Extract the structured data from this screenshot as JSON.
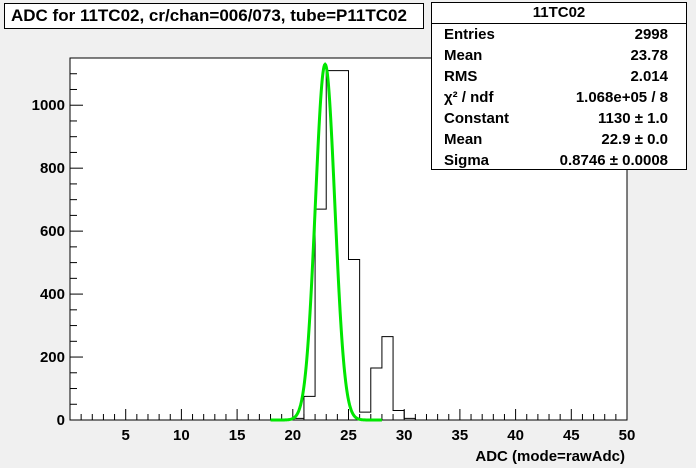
{
  "title": "ADC for 11TC02,  cr/chan=006/073,  tube=P11TC02",
  "stats": {
    "title": "11TC02",
    "rows": [
      {
        "key": "Entries",
        "value": "2998"
      },
      {
        "key": "Mean",
        "value": "23.78"
      },
      {
        "key": "RMS",
        "value": "2.014"
      },
      {
        "key": "χ² / ndf",
        "value": "1.068e+05 / 8"
      },
      {
        "key": "Constant",
        "value": "1130 ± 1.0"
      },
      {
        "key": "Mean",
        "value": "22.9 ± 0.0"
      },
      {
        "key": "Sigma",
        "value": "0.8746 ± 0.0008"
      }
    ]
  },
  "chart_data": {
    "type": "bar",
    "title": "ADC for 11TC02,  cr/chan=006/073,  tube=P11TC02",
    "xlabel": "ADC (mode=rawAdc)",
    "ylabel": "",
    "xlim": [
      0,
      50
    ],
    "ylim": [
      0,
      1150
    ],
    "x_ticks": [
      5,
      10,
      15,
      20,
      25,
      30,
      35,
      40,
      45,
      50
    ],
    "y_ticks": [
      0,
      200,
      400,
      600,
      800,
      1000
    ],
    "histogram": {
      "bin_width": 1,
      "bins": [
        {
          "x": 20,
          "value": 5
        },
        {
          "x": 21,
          "value": 75
        },
        {
          "x": 22,
          "value": 670
        },
        {
          "x": 23,
          "value": 1110
        },
        {
          "x": 24,
          "value": 1110
        },
        {
          "x": 25,
          "value": 510
        },
        {
          "x": 26,
          "value": 25
        },
        {
          "x": 27,
          "value": 165
        },
        {
          "x": 28,
          "value": 265
        },
        {
          "x": 29,
          "value": 30
        },
        {
          "x": 30,
          "value": 5
        }
      ],
      "color": "#000000"
    },
    "fit": {
      "function": "gaus",
      "constant": 1130,
      "mean": 22.9,
      "sigma": 0.8746,
      "range": [
        18,
        28
      ],
      "color": "#00e600"
    }
  }
}
